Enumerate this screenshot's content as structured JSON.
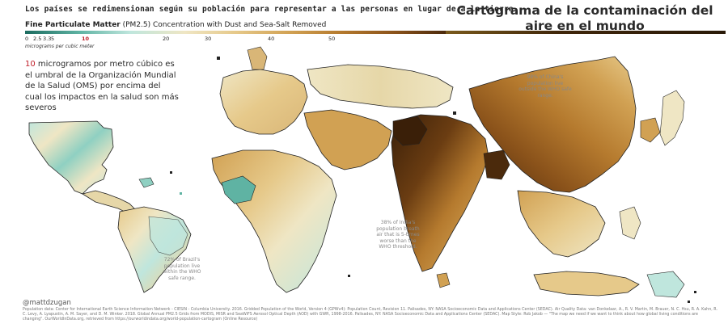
{
  "header": {
    "subtitle": "Los países se redimensionan según su población para representar a las personas en lugar de a la tierra",
    "title": "Cartograma de la contaminación del aire en el mundo"
  },
  "legend": {
    "title_bold": "Fine Particulate Matter",
    "title_rest": " (PM2.5) Concentration with Dust and Sea-Salt Removed",
    "ticks": [
      "0",
      "2.5",
      "3.3",
      "5",
      "10",
      "20",
      "30",
      "40",
      "50"
    ],
    "unit": "micrograms per cubic meter",
    "colors": [
      "#1b6b5f",
      "#5fb3a3",
      "#bfe6dd",
      "#efe6c4",
      "#e6c98a",
      "#d1a153",
      "#b57a2e",
      "#8a521a",
      "#4b2a0c"
    ]
  },
  "who_note": {
    "number": "10",
    "text": " microgramos por metro cúbico es el umbral de la Organización Mundial de la Salud (OMS) por encima del cual los impactos en la salud son más severos"
  },
  "annotations": {
    "china": "98% of China's population live outside the WHO safe range.",
    "india": "38% of India's population breath air that is 5-times worse than the WHO threshold.",
    "brazil": "72% of Brazil's population live within the WHO safe range."
  },
  "credit": "@mattdzugan",
  "source": "Population data: Center for International Earth Science Information Network - CIESIN - Columbia University. 2016. Gridded Population of the World, Version 4 (GPWv4): Population Count, Revision 11. Palisades, NY: NASA Socioeconomic Data and Applications Center (SEDAC). Air Quality Data: van Donkelaar, A., R. V. Martin, M. Brauer, N. C. Hsu, R. A. Kahn, R. C. Levy, A. Lyapustin, A. M. Sayer, and D. M. Winker. 2018. Global Annual PM2.5 Grids from MODIS, MISR and SeaWiFS Aerosol Optical Depth (AOD) with GWR, 1998-2016. Palisades, NY: NASA Socioeconomic Data and Applications Center (SEDAC). Map Style: Rob Jakob — \"The map we need if we want to think about how global living conditions are changing\". OurWorldInData.org, retrieved from https://ourworldindata.org/world-population-cartogram (Online Resource)"
}
